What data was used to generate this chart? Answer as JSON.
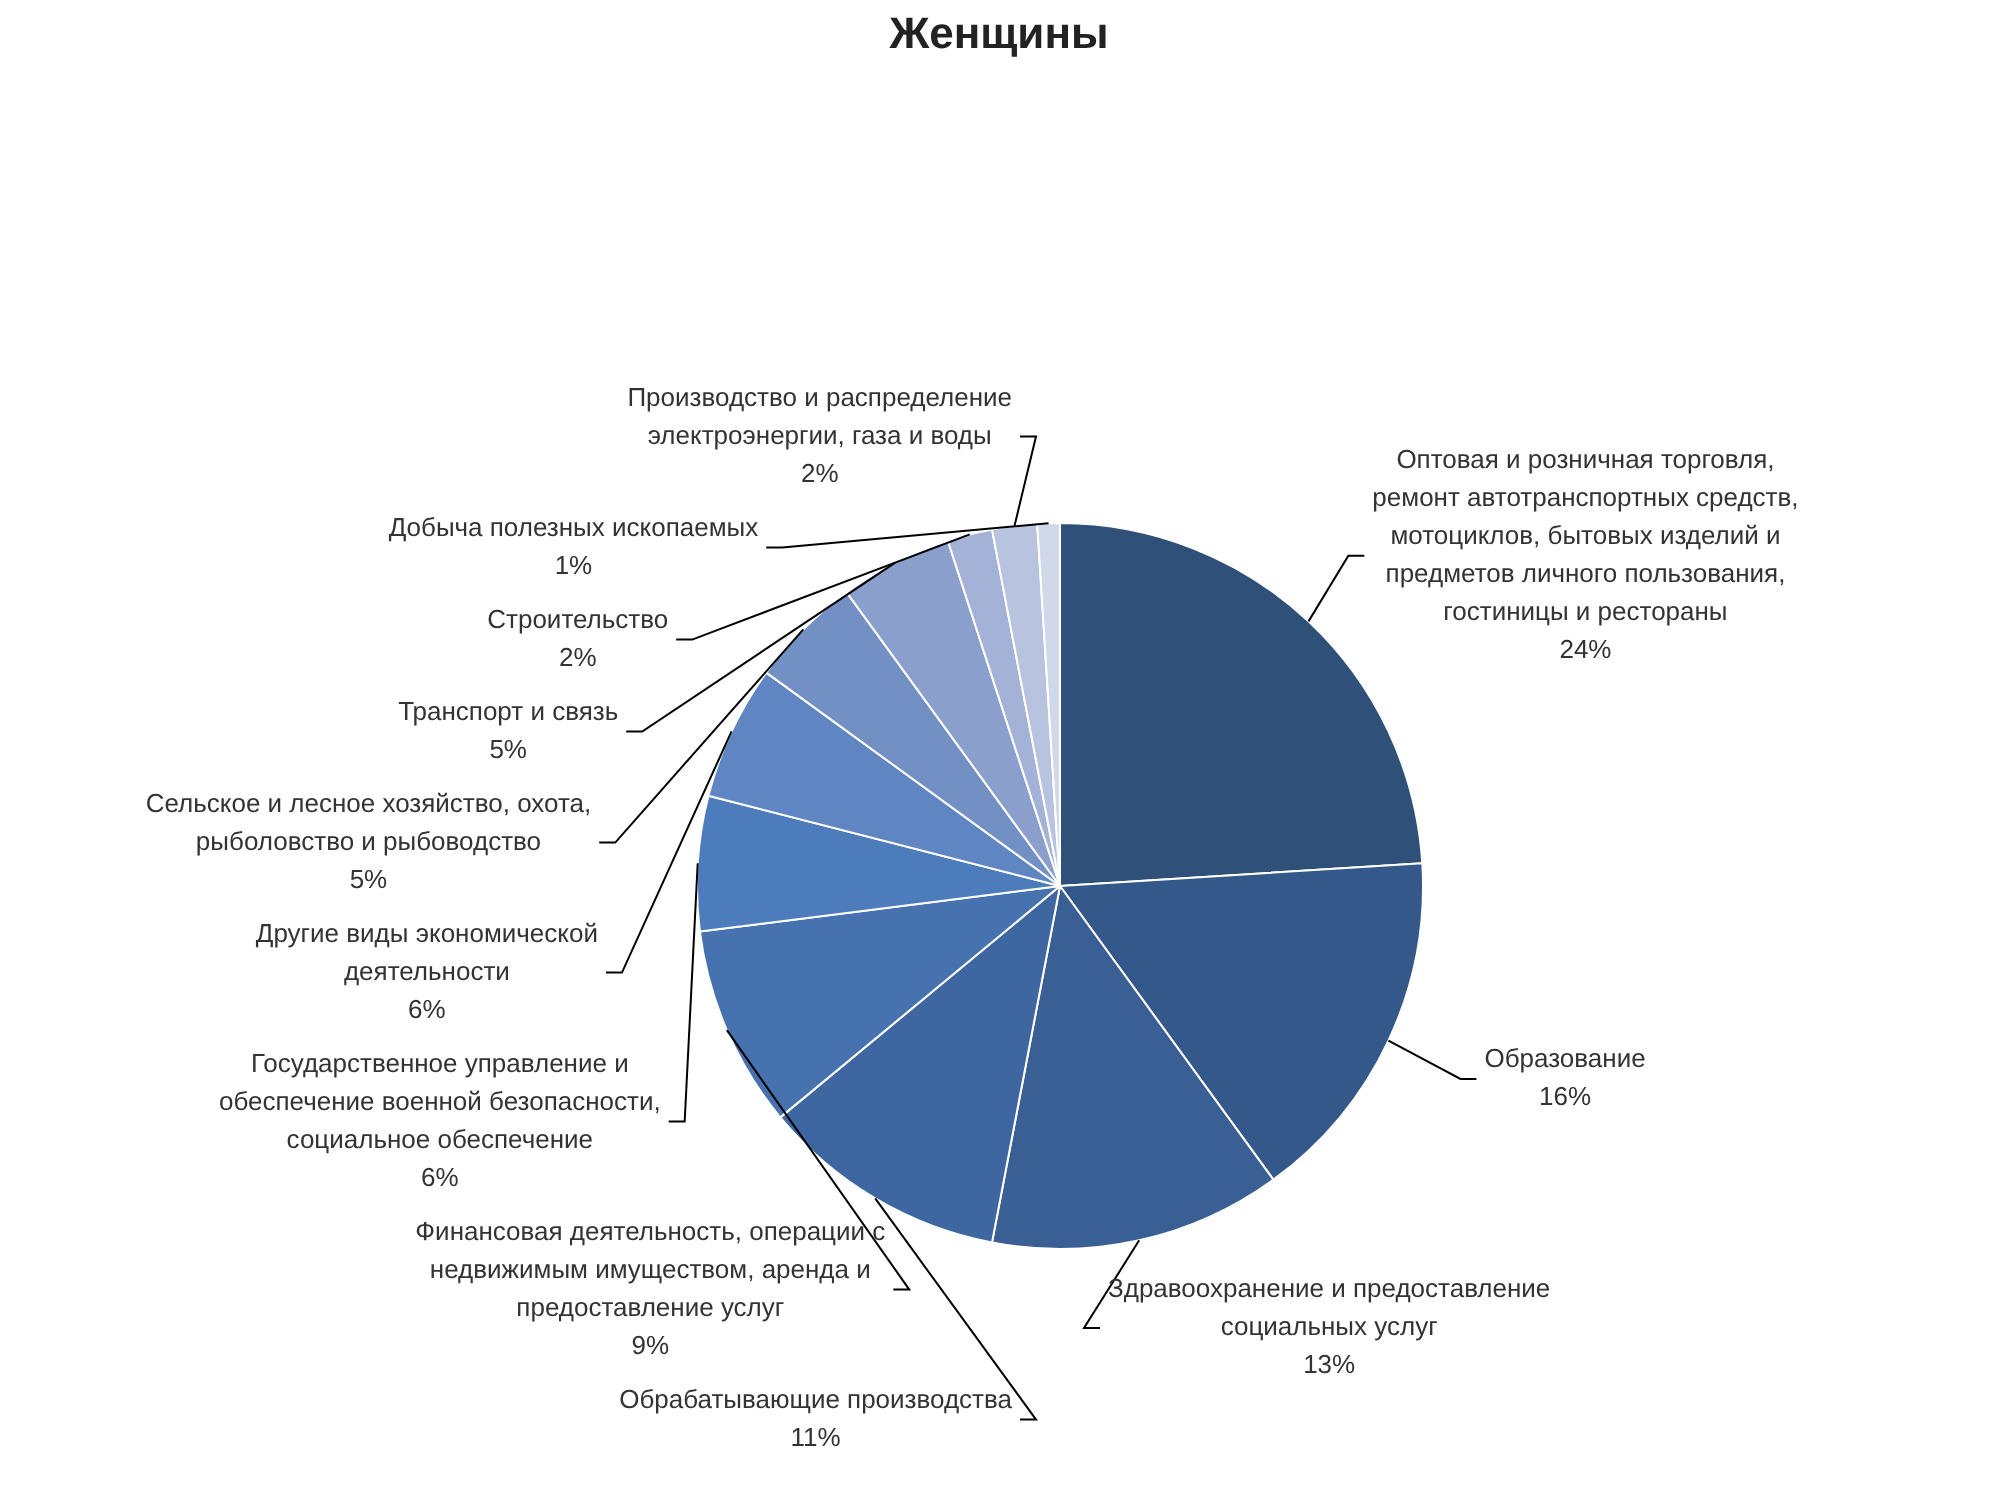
{
  "chart_data": {
    "type": "pie",
    "title": "Женщины",
    "categories": [
      "Оптовая и розничная торговля, ремонт автотранспортных средств, мотоциклов, бытовых изделий и предметов личного пользования, гостиницы и рестораны",
      "Образование",
      "Здравоохранение и предоставление социальных услуг",
      "Обрабатывающие производства",
      "Финансовая деятельность, операции с недвижимым имуществом, аренда и предоставление услуг",
      "Государственное управление и обеспечение военной безопасности, социальное обеспечение",
      "Другие виды экономической деятельности",
      "Сельское и лесное хозяйство, охота, рыболовство и рыбоводство",
      "Транспорт и связь",
      "Строительство",
      "Производство и распределение электроэнергии, газа и воды",
      "Добыча полезных ископаемых"
    ],
    "values": [
      24,
      16,
      13,
      11,
      9,
      6,
      6,
      5,
      5,
      2,
      2,
      1
    ],
    "value_labels": [
      "24%",
      "16%",
      "13%",
      "11%",
      "9%",
      "6%",
      "6%",
      "5%",
      "5%",
      "2%",
      "2%",
      "1%"
    ],
    "colors": [
      "#2f5079",
      "#35588a",
      "#3a5f95",
      "#3e66a0",
      "#4672b0",
      "#4d7cbc",
      "#5f86c2",
      "#7290c4",
      "#8a9fcc",
      "#a3b2d6",
      "#b8c4df",
      "#d0d8ea"
    ],
    "legend": false
  }
}
